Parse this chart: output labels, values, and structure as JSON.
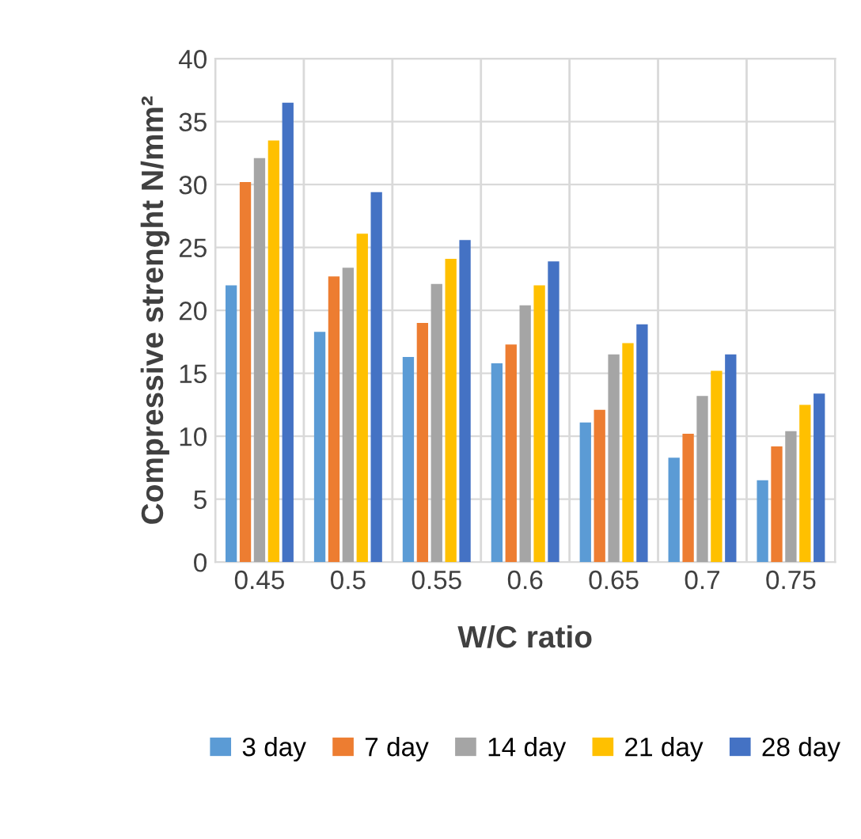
{
  "chart_data": {
    "type": "bar",
    "xlabel": "W/C ratio",
    "ylabel": "Compressive strenght N/mm²",
    "categories": [
      "0.45",
      "0.5",
      "0.55",
      "0.6",
      "0.65",
      "0.7",
      "0.75"
    ],
    "series": [
      {
        "name": "3 day",
        "color": "#5b9bd5",
        "values": [
          22.0,
          18.3,
          16.3,
          15.8,
          11.1,
          8.3,
          6.5
        ]
      },
      {
        "name": "7 day",
        "color": "#ed7d31",
        "values": [
          30.2,
          22.7,
          19.0,
          17.3,
          12.1,
          10.2,
          9.2
        ]
      },
      {
        "name": "14 day",
        "color": "#a5a5a5",
        "values": [
          32.1,
          23.4,
          22.1,
          20.4,
          16.5,
          13.2,
          10.4
        ]
      },
      {
        "name": "21 day",
        "color": "#ffc000",
        "values": [
          33.5,
          26.1,
          24.1,
          22.0,
          17.4,
          15.2,
          12.5
        ]
      },
      {
        "name": "28 day",
        "color": "#4472c4",
        "values": [
          36.5,
          29.4,
          25.6,
          23.9,
          18.9,
          16.5,
          13.4
        ]
      }
    ],
    "ylim": [
      0,
      40
    ],
    "yticks": [
      0,
      5,
      10,
      15,
      20,
      25,
      30,
      35,
      40
    ],
    "grid": true,
    "legend": "bottom"
  }
}
